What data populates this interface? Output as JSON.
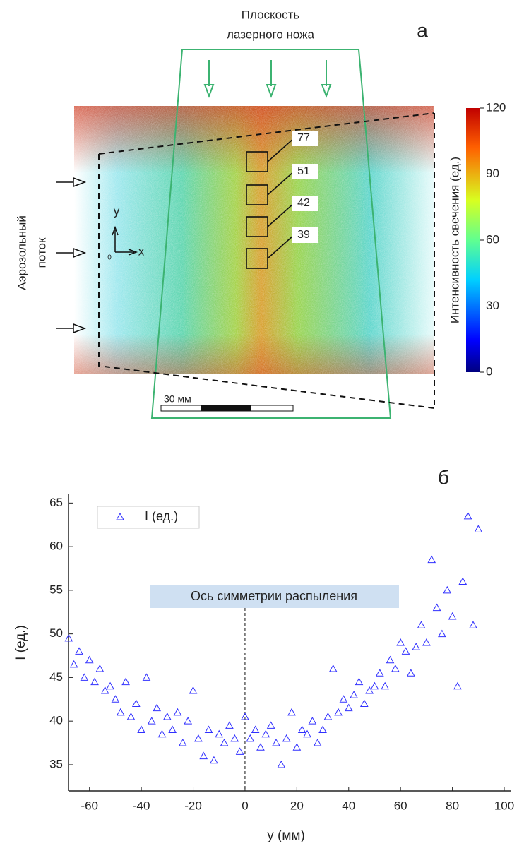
{
  "chart_data": [
    {
      "type": "image",
      "panel_label": "а",
      "title_lines": [
        "Плоскость",
        "лазерного ножа"
      ],
      "side_label_lines": [
        "Аэрозольный",
        "поток"
      ],
      "axis_icon": {
        "x": "x",
        "y": "y",
        "origin": "0"
      },
      "scale_bar": "30 мм",
      "box_values": [
        77,
        51,
        42,
        39
      ],
      "colorbar_label": "Интенсивность свечения (ед.)",
      "zlim": [
        0,
        120
      ],
      "zticks": [
        0,
        30,
        60,
        90,
        120
      ]
    },
    {
      "type": "scatter",
      "panel_label": "б",
      "xlabel": "y (мм)",
      "ylabel": "I (ед.)",
      "annotation": {
        "text": "Ось симметрии распыления",
        "x": 0
      },
      "xlim": [
        -70,
        100
      ],
      "xticks": [
        -60,
        -40,
        -20,
        0,
        20,
        40,
        60,
        80,
        100
      ],
      "ylim": [
        32,
        66
      ],
      "yticks": [
        35,
        40,
        45,
        50,
        55,
        60,
        65
      ],
      "series": [
        {
          "name": "I (ед.)",
          "color": "#3030ff",
          "x": [
            -68,
            -66,
            -64,
            -62,
            -60,
            -58,
            -56,
            -54,
            -52,
            -50,
            -48,
            -46,
            -44,
            -42,
            -40,
            -38,
            -36,
            -34,
            -32,
            -30,
            -28,
            -26,
            -24,
            -22,
            -20,
            -18,
            -16,
            -14,
            -12,
            -10,
            -8,
            -6,
            -4,
            -2,
            0,
            2,
            4,
            6,
            8,
            10,
            12,
            14,
            16,
            18,
            20,
            22,
            24,
            26,
            28,
            30,
            32,
            34,
            36,
            38,
            40,
            42,
            44,
            46,
            48,
            50,
            52,
            54,
            56,
            58,
            60,
            62,
            64,
            66,
            68,
            70,
            72,
            74,
            76,
            78,
            80,
            82,
            84,
            86,
            88,
            90
          ],
          "values": [
            49.5,
            46.5,
            48,
            45,
            47,
            44.5,
            46,
            43.5,
            44,
            42.5,
            41,
            44.5,
            40.5,
            42,
            39,
            45,
            40,
            41.5,
            38.5,
            40.5,
            39,
            41,
            37.5,
            40,
            43.5,
            38,
            36,
            39,
            35.5,
            38.5,
            37.5,
            39.5,
            38,
            36.5,
            40.5,
            38,
            39,
            37,
            38.5,
            39.5,
            37.5,
            35,
            38,
            41,
            37,
            39,
            38.5,
            40,
            37.5,
            39,
            40.5,
            46,
            41,
            42.5,
            41.5,
            43,
            44.5,
            42,
            43.5,
            44,
            45.5,
            44,
            47,
            46,
            49,
            48,
            45.5,
            48.5,
            51,
            49,
            58.5,
            53,
            50,
            55,
            52,
            44,
            56,
            63.5,
            51,
            62
          ]
        }
      ]
    }
  ]
}
